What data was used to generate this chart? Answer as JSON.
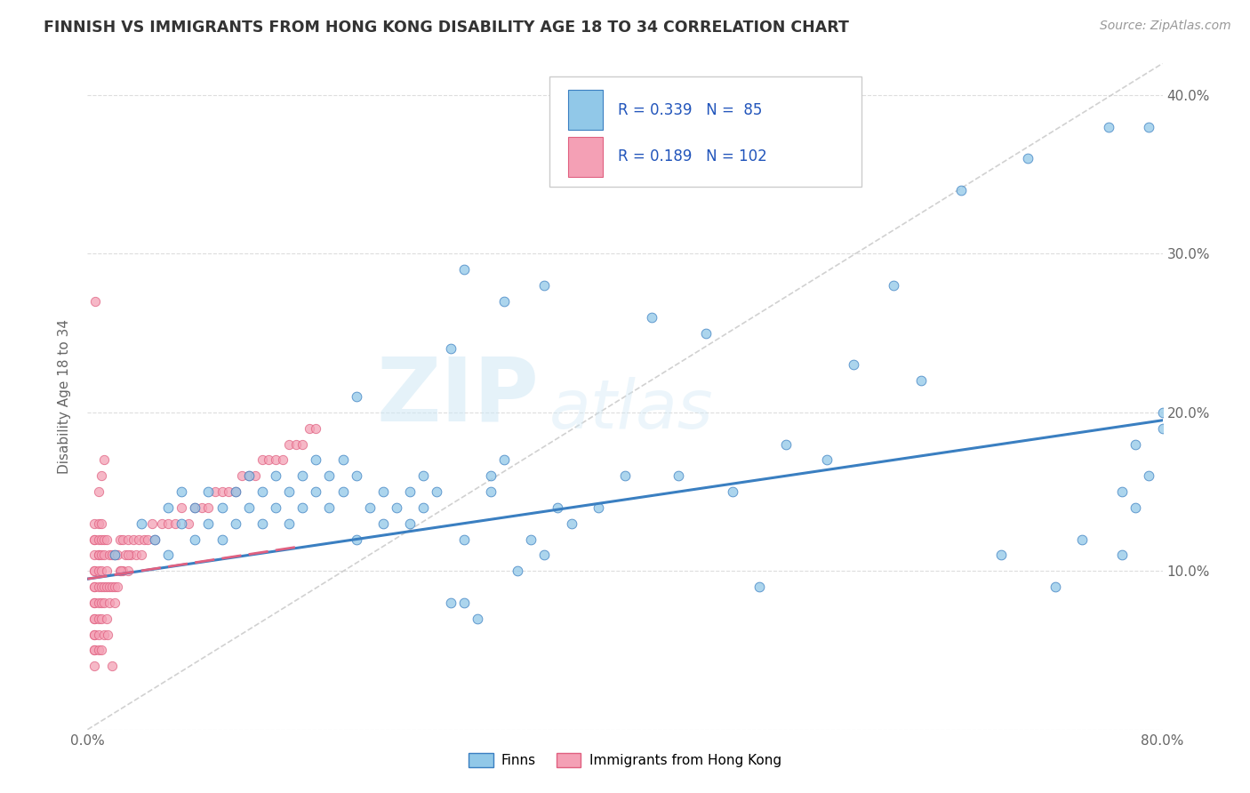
{
  "title": "FINNISH VS IMMIGRANTS FROM HONG KONG DISABILITY AGE 18 TO 34 CORRELATION CHART",
  "source": "Source: ZipAtlas.com",
  "ylabel": "Disability Age 18 to 34",
  "xlim": [
    0.0,
    0.8
  ],
  "ylim": [
    0.0,
    0.42
  ],
  "xtick_positions": [
    0.0,
    0.1,
    0.2,
    0.3,
    0.4,
    0.5,
    0.6,
    0.7,
    0.8
  ],
  "xticklabels": [
    "0.0%",
    "",
    "",
    "",
    "",
    "",
    "",
    "",
    "80.0%"
  ],
  "ytick_positions": [
    0.0,
    0.1,
    0.2,
    0.3,
    0.4
  ],
  "yticklabels_right": [
    "",
    "10.0%",
    "20.0%",
    "30.0%",
    "40.0%"
  ],
  "r_finns": 0.339,
  "n_finns": 85,
  "r_hk": 0.189,
  "n_hk": 102,
  "color_finns": "#91C8E8",
  "color_hk": "#F4A0B5",
  "line_color_finns": "#3A7FC1",
  "line_color_hk": "#E06080",
  "diagonal_color": "#CCCCCC",
  "finns_trend_x": [
    0.0,
    0.8
  ],
  "finns_trend_y": [
    0.095,
    0.195
  ],
  "hk_trend_x": [
    0.0,
    0.155
  ],
  "hk_trend_y": [
    0.095,
    0.115
  ],
  "finns_x": [
    0.02,
    0.04,
    0.05,
    0.06,
    0.06,
    0.07,
    0.07,
    0.08,
    0.08,
    0.09,
    0.09,
    0.1,
    0.1,
    0.11,
    0.11,
    0.12,
    0.12,
    0.13,
    0.13,
    0.14,
    0.14,
    0.15,
    0.15,
    0.16,
    0.16,
    0.17,
    0.17,
    0.18,
    0.18,
    0.19,
    0.19,
    0.2,
    0.2,
    0.21,
    0.22,
    0.22,
    0.23,
    0.24,
    0.24,
    0.25,
    0.25,
    0.26,
    0.27,
    0.28,
    0.28,
    0.29,
    0.3,
    0.3,
    0.31,
    0.32,
    0.33,
    0.34,
    0.35,
    0.36,
    0.38,
    0.4,
    0.42,
    0.44,
    0.46,
    0.48,
    0.5,
    0.52,
    0.55,
    0.57,
    0.6,
    0.62,
    0.65,
    0.68,
    0.7,
    0.72,
    0.74,
    0.76,
    0.77,
    0.77,
    0.78,
    0.78,
    0.79,
    0.79,
    0.8,
    0.8,
    0.28,
    0.34,
    0.2,
    0.27,
    0.31
  ],
  "finns_y": [
    0.11,
    0.13,
    0.12,
    0.14,
    0.11,
    0.13,
    0.15,
    0.12,
    0.14,
    0.13,
    0.15,
    0.12,
    0.14,
    0.13,
    0.15,
    0.14,
    0.16,
    0.13,
    0.15,
    0.14,
    0.16,
    0.13,
    0.15,
    0.14,
    0.16,
    0.15,
    0.17,
    0.14,
    0.16,
    0.15,
    0.17,
    0.16,
    0.12,
    0.14,
    0.13,
    0.15,
    0.14,
    0.13,
    0.15,
    0.14,
    0.16,
    0.15,
    0.08,
    0.08,
    0.12,
    0.07,
    0.15,
    0.16,
    0.17,
    0.1,
    0.12,
    0.11,
    0.14,
    0.13,
    0.14,
    0.16,
    0.26,
    0.16,
    0.25,
    0.15,
    0.09,
    0.18,
    0.17,
    0.23,
    0.28,
    0.22,
    0.34,
    0.11,
    0.36,
    0.09,
    0.12,
    0.38,
    0.15,
    0.11,
    0.18,
    0.14,
    0.16,
    0.38,
    0.19,
    0.2,
    0.29,
    0.28,
    0.21,
    0.24,
    0.27
  ],
  "hk_x": [
    0.005,
    0.005,
    0.005,
    0.005,
    0.005,
    0.005,
    0.005,
    0.005,
    0.005,
    0.005,
    0.005,
    0.005,
    0.005,
    0.005,
    0.005,
    0.005,
    0.005,
    0.008,
    0.008,
    0.008,
    0.008,
    0.008,
    0.008,
    0.008,
    0.008,
    0.008,
    0.008,
    0.01,
    0.01,
    0.01,
    0.01,
    0.01,
    0.01,
    0.01,
    0.01,
    0.012,
    0.012,
    0.012,
    0.012,
    0.012,
    0.014,
    0.014,
    0.014,
    0.014,
    0.016,
    0.016,
    0.016,
    0.018,
    0.018,
    0.02,
    0.02,
    0.022,
    0.022,
    0.024,
    0.024,
    0.026,
    0.026,
    0.028,
    0.03,
    0.03,
    0.032,
    0.034,
    0.036,
    0.038,
    0.04,
    0.042,
    0.045,
    0.048,
    0.05,
    0.055,
    0.06,
    0.065,
    0.07,
    0.075,
    0.08,
    0.085,
    0.09,
    0.095,
    0.1,
    0.105,
    0.11,
    0.115,
    0.12,
    0.125,
    0.13,
    0.135,
    0.14,
    0.145,
    0.15,
    0.155,
    0.16,
    0.165,
    0.17,
    0.01,
    0.018,
    0.006,
    0.008,
    0.012,
    0.015,
    0.02,
    0.025,
    0.03
  ],
  "hk_y": [
    0.04,
    0.05,
    0.05,
    0.06,
    0.06,
    0.07,
    0.07,
    0.08,
    0.08,
    0.09,
    0.09,
    0.1,
    0.1,
    0.11,
    0.12,
    0.12,
    0.13,
    0.05,
    0.06,
    0.07,
    0.08,
    0.09,
    0.1,
    0.11,
    0.11,
    0.12,
    0.13,
    0.05,
    0.07,
    0.08,
    0.09,
    0.1,
    0.11,
    0.12,
    0.13,
    0.06,
    0.08,
    0.09,
    0.11,
    0.12,
    0.07,
    0.09,
    0.1,
    0.12,
    0.08,
    0.09,
    0.11,
    0.09,
    0.11,
    0.09,
    0.11,
    0.09,
    0.11,
    0.1,
    0.12,
    0.1,
    0.12,
    0.11,
    0.1,
    0.12,
    0.11,
    0.12,
    0.11,
    0.12,
    0.11,
    0.12,
    0.12,
    0.13,
    0.12,
    0.13,
    0.13,
    0.13,
    0.14,
    0.13,
    0.14,
    0.14,
    0.14,
    0.15,
    0.15,
    0.15,
    0.15,
    0.16,
    0.16,
    0.16,
    0.17,
    0.17,
    0.17,
    0.17,
    0.18,
    0.18,
    0.18,
    0.19,
    0.19,
    0.16,
    0.04,
    0.27,
    0.15,
    0.17,
    0.06,
    0.08,
    0.1,
    0.11
  ]
}
